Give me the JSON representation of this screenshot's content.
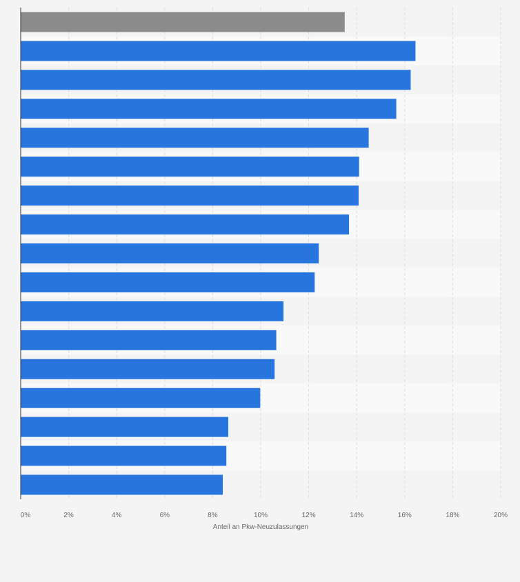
{
  "chart_data": {
    "type": "bar",
    "orientation": "horizontal",
    "categories": [
      "",
      "",
      "",
      "",
      "",
      "",
      "",
      "",
      "",
      "",
      "",
      "",
      "",
      "",
      "",
      "",
      ""
    ],
    "values": [
      13.5,
      16.45,
      16.25,
      15.65,
      14.5,
      14.1,
      14.08,
      13.68,
      12.42,
      12.25,
      10.95,
      10.65,
      10.58,
      9.98,
      8.65,
      8.57,
      8.42
    ],
    "highlight_index": 0,
    "xlim": [
      0,
      20
    ],
    "x_ticks": [
      0,
      2,
      4,
      6,
      8,
      10,
      12,
      14,
      16,
      18,
      20
    ],
    "x_tick_labels": [
      "0%",
      "2%",
      "4%",
      "6%",
      "8%",
      "10%",
      "12%",
      "14%",
      "16%",
      "18%",
      "20%"
    ],
    "xlabel": "Anteil an Pkw-Neuzulassungen",
    "grid": true,
    "colors": {
      "bar": "#2876dd",
      "highlight": "#8c8c8c",
      "grid": "#dddddd",
      "axis": "#333333",
      "band_light": "#f9f9f9",
      "band_dark": "#f4f4f4"
    }
  }
}
